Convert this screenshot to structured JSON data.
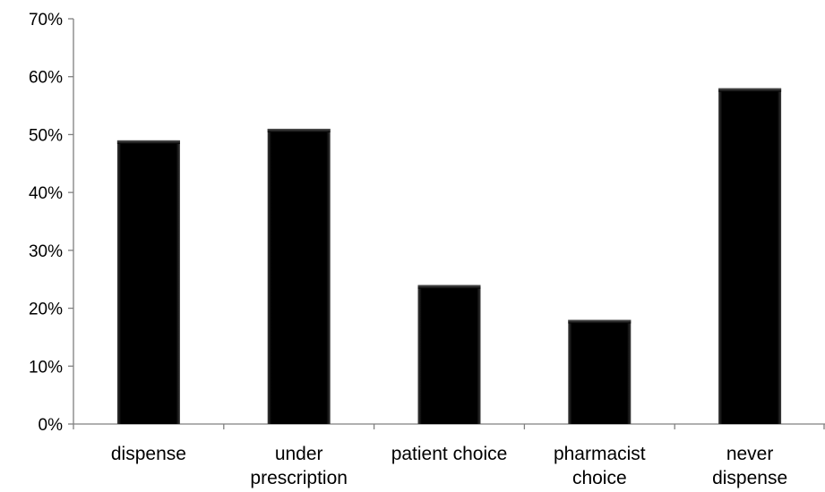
{
  "chart_data": {
    "type": "bar",
    "categories": [
      [
        "dispense"
      ],
      [
        "under",
        "prescription"
      ],
      [
        "patient choice"
      ],
      [
        "pharmacist",
        "choice"
      ],
      [
        "never",
        "dispense"
      ]
    ],
    "values": [
      0.49,
      0.51,
      0.24,
      0.18,
      0.58
    ],
    "ylim": [
      0,
      0.7
    ],
    "yticks": [
      "0%",
      "10%",
      "20%",
      "30%",
      "40%",
      "50%",
      "60%",
      "70%"
    ],
    "title": "",
    "xlabel": "",
    "ylabel": "",
    "grid": false,
    "legend": "none",
    "colors": {
      "bar": "#000000",
      "axis": "#808080",
      "text": "#000000"
    }
  }
}
